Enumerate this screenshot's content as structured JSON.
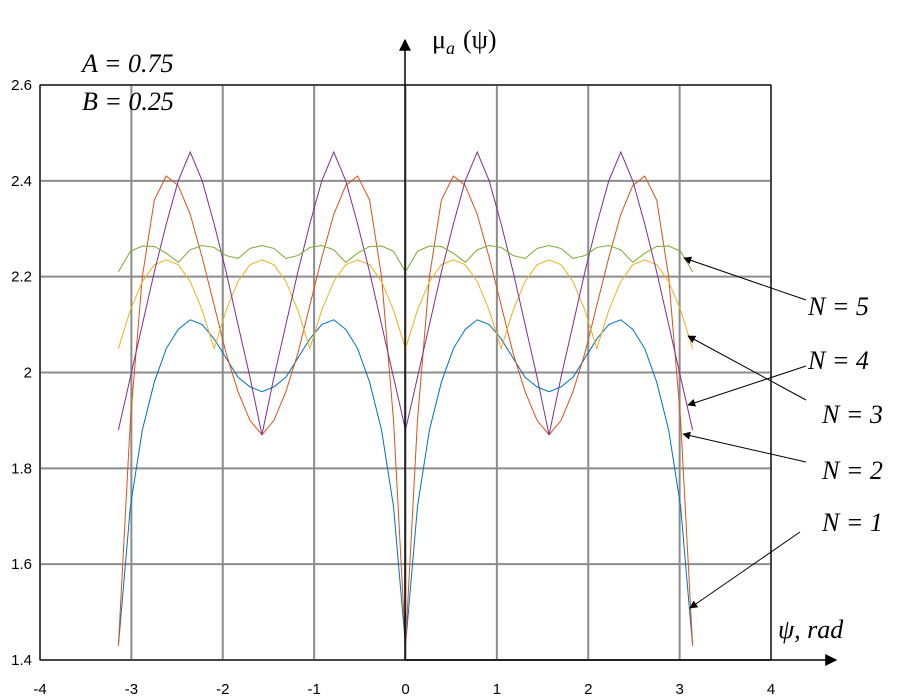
{
  "chart_data": {
    "type": "line",
    "annotations": [
      "A = 0.75",
      "B = 0.25"
    ],
    "y_label": {
      "symbol": "μ",
      "sub": "a",
      "arg": "(ψ)"
    },
    "x_label": "ψ, rad",
    "x": [
      -3.142,
      -3.011,
      -2.88,
      -2.749,
      -2.618,
      -2.487,
      -2.356,
      -2.225,
      -2.094,
      -1.963,
      -1.833,
      -1.702,
      -1.571,
      -1.44,
      -1.309,
      -1.178,
      -1.047,
      -0.916,
      -0.785,
      -0.654,
      -0.524,
      -0.393,
      -0.262,
      -0.131,
      0,
      0.131,
      0.262,
      0.393,
      0.524,
      0.654,
      0.785,
      0.916,
      1.047,
      1.178,
      1.309,
      1.44,
      1.571,
      1.702,
      1.833,
      1.963,
      2.094,
      2.225,
      2.356,
      2.487,
      2.618,
      2.749,
      2.88,
      3.011,
      3.142
    ],
    "series": [
      {
        "name": "N = 1",
        "color": "#0072bd",
        "values": [
          1.43,
          1.72,
          1.88,
          1.98,
          2.05,
          2.09,
          2.11,
          2.1,
          2.07,
          2.03,
          1.99,
          1.97,
          1.96,
          1.97,
          1.99,
          2.03,
          2.07,
          2.1,
          2.11,
          2.09,
          2.05,
          1.98,
          1.88,
          1.72,
          1.43,
          1.72,
          1.88,
          1.98,
          2.05,
          2.09,
          2.11,
          2.1,
          2.07,
          2.03,
          1.99,
          1.97,
          1.96,
          1.97,
          1.99,
          2.03,
          2.07,
          2.1,
          2.11,
          2.09,
          2.05,
          1.98,
          1.88,
          1.72,
          1.43
        ]
      },
      {
        "name": "N = 2",
        "color": "#d95319",
        "values": [
          1.43,
          1.9,
          2.2,
          2.36,
          2.41,
          2.39,
          2.33,
          2.24,
          2.14,
          2.04,
          1.96,
          1.9,
          1.87,
          1.9,
          1.96,
          2.04,
          2.14,
          2.24,
          2.33,
          2.39,
          2.41,
          2.36,
          2.2,
          1.9,
          1.43,
          1.9,
          2.2,
          2.36,
          2.41,
          2.39,
          2.33,
          2.24,
          2.14,
          2.04,
          1.96,
          1.9,
          1.87,
          1.9,
          1.96,
          2.04,
          2.14,
          2.24,
          2.33,
          2.39,
          2.41,
          2.36,
          2.2,
          1.9,
          1.43
        ]
      },
      {
        "name": "N = 3",
        "color": "#edb120",
        "values": [
          2.05,
          2.13,
          2.19,
          2.225,
          2.235,
          2.225,
          2.19,
          2.13,
          2.05,
          2.13,
          2.19,
          2.225,
          2.235,
          2.225,
          2.19,
          2.13,
          2.05,
          2.13,
          2.19,
          2.225,
          2.235,
          2.225,
          2.19,
          2.13,
          2.05,
          2.13,
          2.19,
          2.225,
          2.235,
          2.225,
          2.19,
          2.13,
          2.05,
          2.13,
          2.19,
          2.225,
          2.235,
          2.225,
          2.19,
          2.13,
          2.05,
          2.13,
          2.19,
          2.225,
          2.235,
          2.225,
          2.19,
          2.13,
          2.05
        ]
      },
      {
        "name": "N = 4",
        "color": "#7e2f8e",
        "values": [
          1.88,
          1.99,
          2.1,
          2.21,
          2.31,
          2.4,
          2.46,
          2.4,
          2.31,
          2.21,
          2.1,
          1.99,
          1.87,
          1.99,
          2.1,
          2.21,
          2.31,
          2.4,
          2.46,
          2.4,
          2.31,
          2.21,
          2.1,
          1.99,
          1.88,
          1.99,
          2.1,
          2.21,
          2.31,
          2.4,
          2.46,
          2.4,
          2.31,
          2.21,
          2.1,
          1.99,
          1.87,
          1.99,
          2.1,
          2.21,
          2.31,
          2.4,
          2.46,
          2.4,
          2.31,
          2.21,
          2.1,
          1.99,
          1.88
        ]
      },
      {
        "name": "N = 5",
        "color": "#77ac30",
        "values": [
          2.21,
          2.253,
          2.264,
          2.263,
          2.249,
          2.23,
          2.256,
          2.265,
          2.261,
          2.244,
          2.238,
          2.259,
          2.265,
          2.259,
          2.238,
          2.244,
          2.261,
          2.265,
          2.256,
          2.23,
          2.249,
          2.263,
          2.264,
          2.253,
          2.21,
          2.253,
          2.264,
          2.263,
          2.249,
          2.23,
          2.256,
          2.265,
          2.261,
          2.244,
          2.238,
          2.259,
          2.265,
          2.259,
          2.238,
          2.244,
          2.261,
          2.265,
          2.256,
          2.23,
          2.249,
          2.263,
          2.264,
          2.253,
          2.21
        ]
      }
    ],
    "xlim": [
      -4,
      4
    ],
    "xticks": [
      -4,
      -3,
      -2,
      -1,
      0,
      1,
      2,
      3,
      4
    ],
    "ylim": [
      1.4,
      2.6
    ],
    "yticks": [
      1.4,
      1.6,
      1.8,
      2,
      2.2,
      2.4,
      2.6
    ],
    "grid": true
  }
}
